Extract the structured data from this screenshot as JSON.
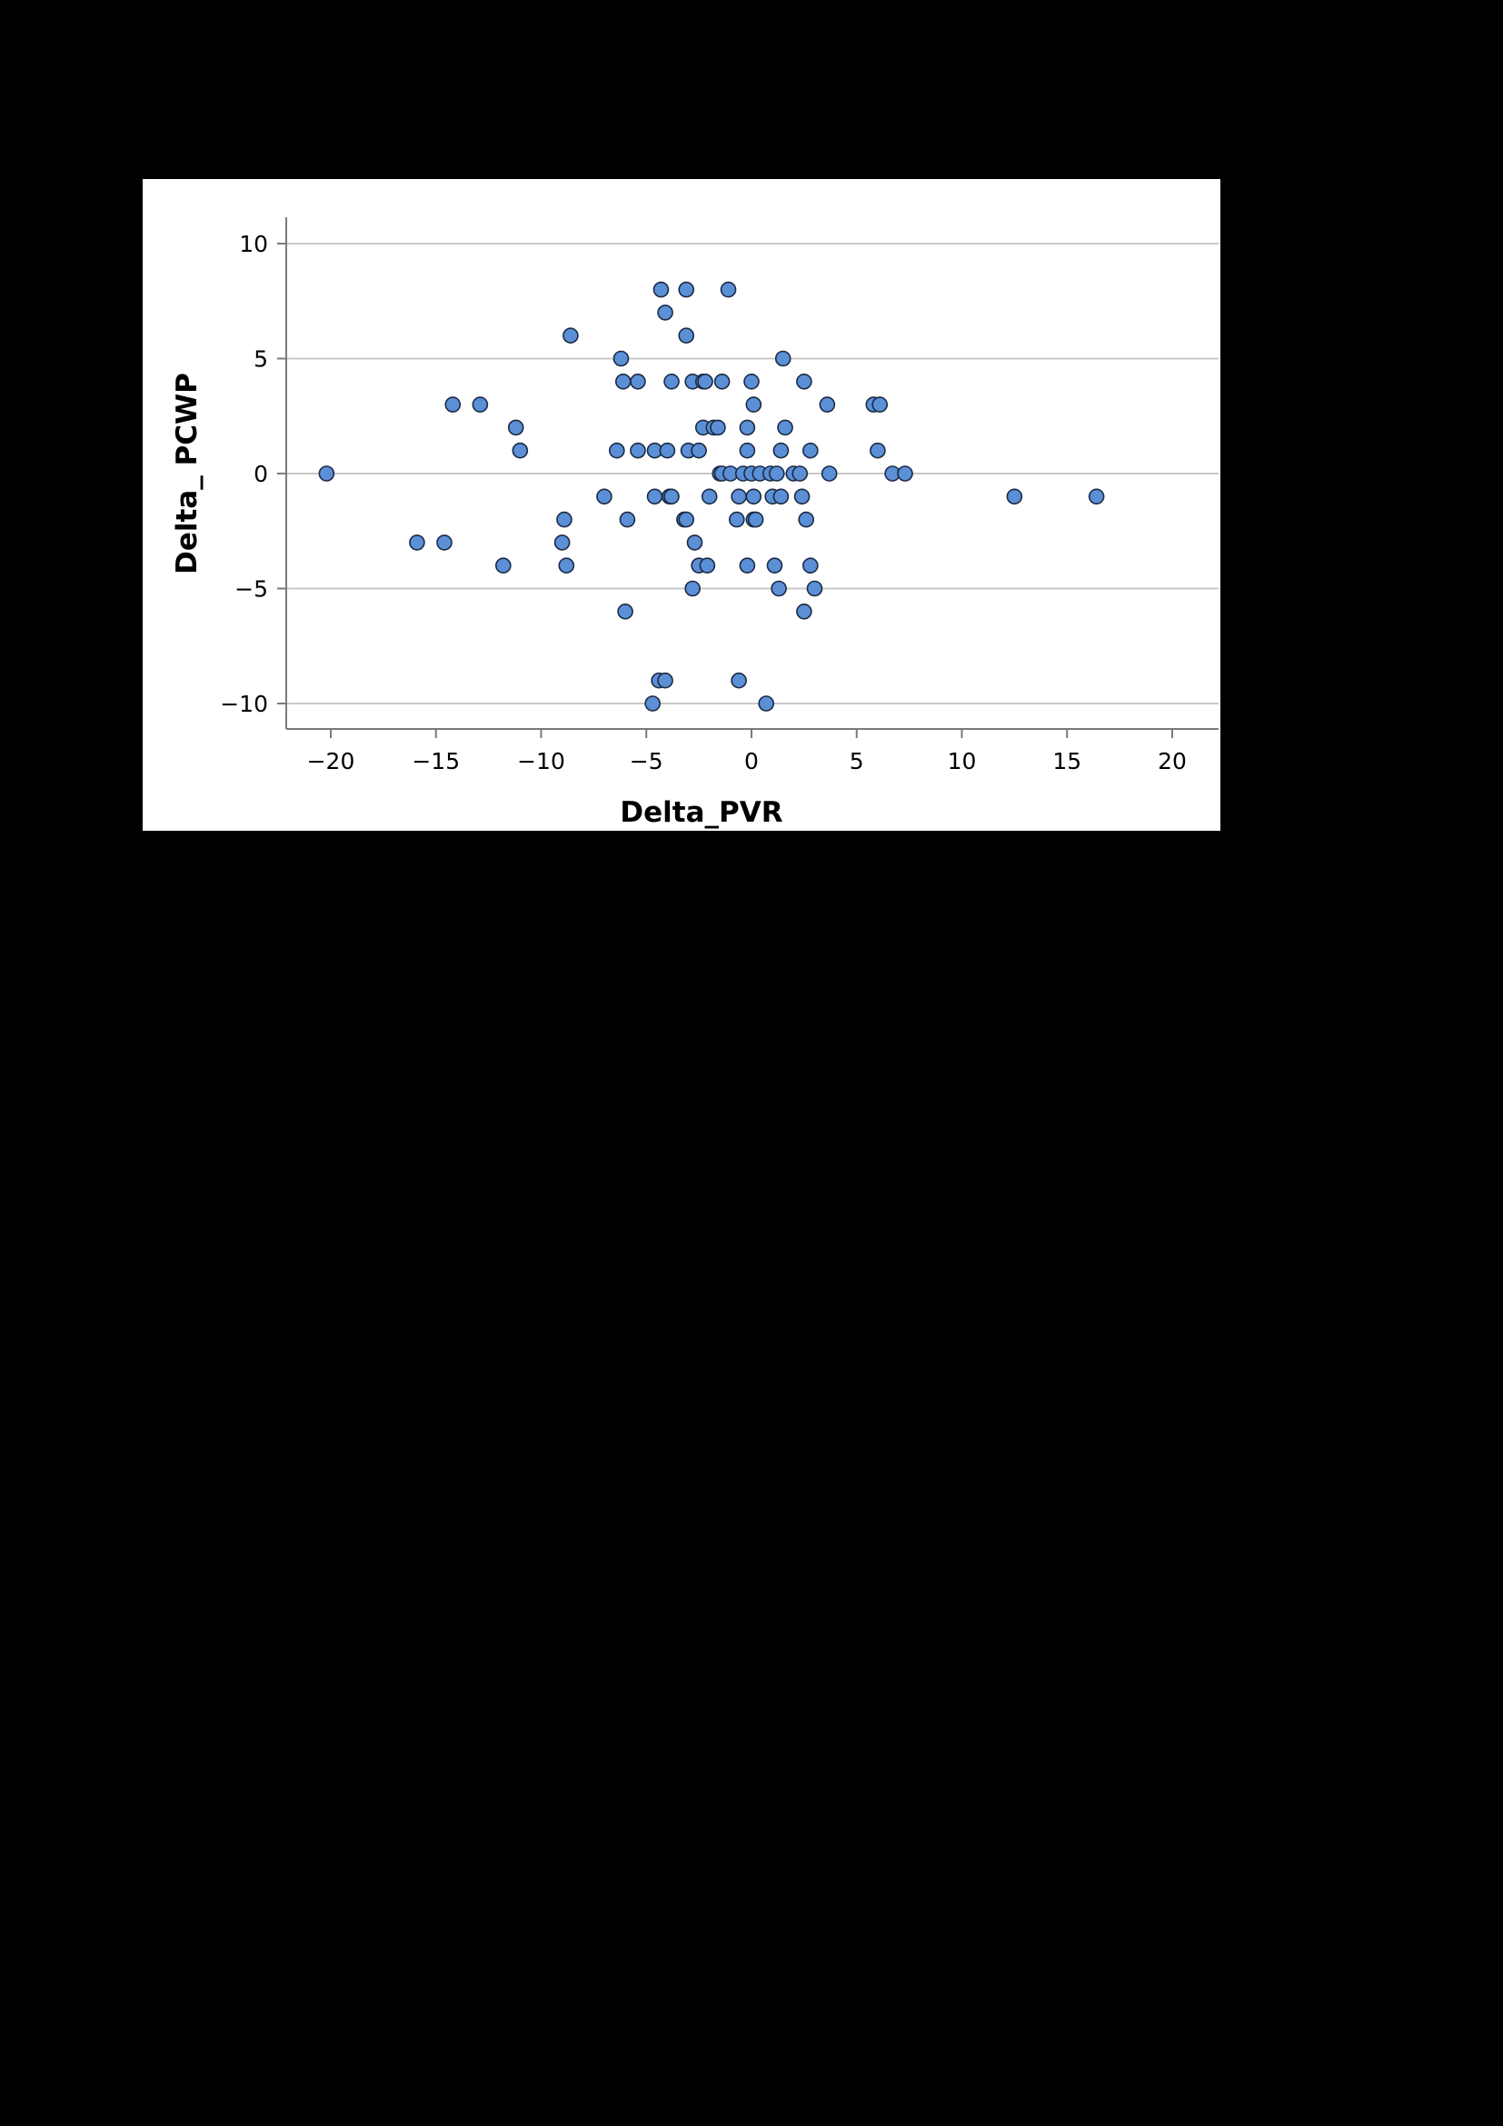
{
  "chart_data": {
    "type": "scatter",
    "xlabel": "Delta_PVR",
    "ylabel": "Delta_ PCWP",
    "xlim": [
      -22,
      22
    ],
    "ylim": [
      -11,
      11
    ],
    "xticks": [
      -20,
      -15,
      -10,
      -5,
      0,
      5,
      10,
      15,
      20
    ],
    "yticks": [
      -10,
      -5,
      0,
      5,
      10
    ],
    "xtick_labels": [
      "−20",
      "−15",
      "−10",
      "−5",
      "0",
      "5",
      "10",
      "15",
      "20"
    ],
    "ytick_labels": [
      "−10",
      "−5",
      "0",
      "5",
      "10"
    ],
    "grid": "horizontal",
    "marker_color": "#5b8fd6",
    "marker_edge_color": "#1b2a44",
    "points": [
      {
        "x": -20.2,
        "y": 0
      },
      {
        "x": -15.9,
        "y": -3
      },
      {
        "x": -14.6,
        "y": -3
      },
      {
        "x": -14.2,
        "y": 3
      },
      {
        "x": -12.9,
        "y": 3
      },
      {
        "x": -11.8,
        "y": -4
      },
      {
        "x": -11.2,
        "y": 2
      },
      {
        "x": -11.0,
        "y": 1
      },
      {
        "x": -9.0,
        "y": -3
      },
      {
        "x": -8.9,
        "y": -2
      },
      {
        "x": -8.8,
        "y": -4
      },
      {
        "x": -8.6,
        "y": 6
      },
      {
        "x": -7.0,
        "y": -1
      },
      {
        "x": -6.4,
        "y": 1
      },
      {
        "x": -6.2,
        "y": 5
      },
      {
        "x": -6.1,
        "y": 4
      },
      {
        "x": -6.0,
        "y": -6
      },
      {
        "x": -5.9,
        "y": -2
      },
      {
        "x": -5.4,
        "y": 4
      },
      {
        "x": -5.4,
        "y": 1
      },
      {
        "x": -4.7,
        "y": -10
      },
      {
        "x": -4.6,
        "y": 1
      },
      {
        "x": -4.6,
        "y": -1
      },
      {
        "x": -4.4,
        "y": -9
      },
      {
        "x": -4.3,
        "y": 8
      },
      {
        "x": -4.1,
        "y": -9
      },
      {
        "x": -4.1,
        "y": 7
      },
      {
        "x": -4.0,
        "y": 1
      },
      {
        "x": -3.9,
        "y": -1
      },
      {
        "x": -3.8,
        "y": 4
      },
      {
        "x": -3.8,
        "y": -1
      },
      {
        "x": -3.2,
        "y": -2
      },
      {
        "x": -3.1,
        "y": 8
      },
      {
        "x": -3.1,
        "y": -2
      },
      {
        "x": -3.1,
        "y": 6
      },
      {
        "x": -3.0,
        "y": 1
      },
      {
        "x": -2.8,
        "y": -5
      },
      {
        "x": -2.8,
        "y": 4
      },
      {
        "x": -2.7,
        "y": -3
      },
      {
        "x": -2.5,
        "y": -4
      },
      {
        "x": -2.5,
        "y": 1
      },
      {
        "x": -2.3,
        "y": 4
      },
      {
        "x": -2.3,
        "y": 2
      },
      {
        "x": -2.2,
        "y": 4
      },
      {
        "x": -2.1,
        "y": -4
      },
      {
        "x": -2.0,
        "y": -1
      },
      {
        "x": -1.8,
        "y": 2
      },
      {
        "x": -1.6,
        "y": 2
      },
      {
        "x": -1.5,
        "y": 0
      },
      {
        "x": -1.4,
        "y": 4
      },
      {
        "x": -1.4,
        "y": 0
      },
      {
        "x": -1.1,
        "y": 8
      },
      {
        "x": -1.0,
        "y": 0
      },
      {
        "x": -0.7,
        "y": -2
      },
      {
        "x": -0.6,
        "y": -9
      },
      {
        "x": -0.6,
        "y": -1
      },
      {
        "x": -0.4,
        "y": 0
      },
      {
        "x": -0.2,
        "y": 2
      },
      {
        "x": -0.2,
        "y": 1
      },
      {
        "x": -0.2,
        "y": -4
      },
      {
        "x": 0.0,
        "y": 4
      },
      {
        "x": 0.0,
        "y": 0
      },
      {
        "x": 0.1,
        "y": -2
      },
      {
        "x": 0.1,
        "y": -1
      },
      {
        "x": 0.1,
        "y": 3
      },
      {
        "x": 0.2,
        "y": -2
      },
      {
        "x": 0.4,
        "y": 0
      },
      {
        "x": 0.7,
        "y": -10
      },
      {
        "x": 0.9,
        "y": 0
      },
      {
        "x": 1.0,
        "y": -1
      },
      {
        "x": 1.1,
        "y": -4
      },
      {
        "x": 1.2,
        "y": 0
      },
      {
        "x": 1.3,
        "y": -5
      },
      {
        "x": 1.4,
        "y": -1
      },
      {
        "x": 1.4,
        "y": 1
      },
      {
        "x": 1.5,
        "y": 5
      },
      {
        "x": 1.6,
        "y": 2
      },
      {
        "x": 2.0,
        "y": 0
      },
      {
        "x": 2.3,
        "y": 0
      },
      {
        "x": 2.4,
        "y": -1
      },
      {
        "x": 2.5,
        "y": 4
      },
      {
        "x": 2.5,
        "y": -6
      },
      {
        "x": 2.6,
        "y": -2
      },
      {
        "x": 2.8,
        "y": 1
      },
      {
        "x": 2.8,
        "y": -4
      },
      {
        "x": 3.0,
        "y": -5
      },
      {
        "x": 3.6,
        "y": 3
      },
      {
        "x": 3.7,
        "y": 0
      },
      {
        "x": 5.8,
        "y": 3
      },
      {
        "x": 6.0,
        "y": 1
      },
      {
        "x": 6.1,
        "y": 3
      },
      {
        "x": 6.7,
        "y": 0
      },
      {
        "x": 7.3,
        "y": 0
      },
      {
        "x": 12.5,
        "y": -1
      },
      {
        "x": 16.4,
        "y": -1
      }
    ]
  }
}
